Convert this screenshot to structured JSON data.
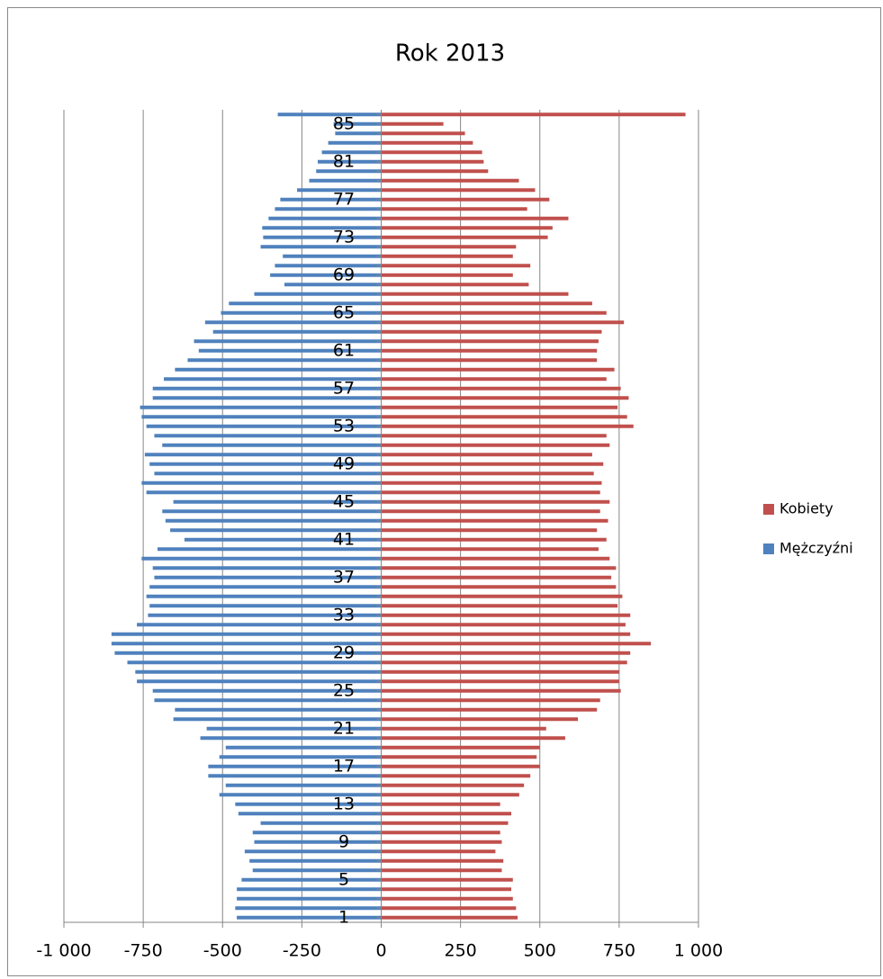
{
  "chart_data": {
    "type": "bar",
    "orientation": "horizontal",
    "title": "Rok 2013",
    "categories": [
      "1",
      null,
      null,
      null,
      "5",
      null,
      null,
      null,
      "9",
      null,
      null,
      null,
      "13",
      null,
      null,
      null,
      "17",
      null,
      null,
      null,
      "21",
      null,
      null,
      null,
      "25",
      null,
      null,
      null,
      "29",
      null,
      null,
      null,
      "33",
      null,
      null,
      null,
      "37",
      null,
      null,
      null,
      "41",
      null,
      null,
      null,
      "45",
      null,
      null,
      null,
      "49",
      null,
      null,
      null,
      "53",
      null,
      null,
      null,
      "57",
      null,
      null,
      null,
      "61",
      null,
      null,
      null,
      "65",
      null,
      null,
      null,
      "69",
      null,
      null,
      null,
      "73",
      null,
      null,
      null,
      "77",
      null,
      null,
      null,
      "81",
      null,
      null,
      null,
      "85",
      null
    ],
    "series": [
      {
        "name": "Kobiety",
        "color": "#c0504d",
        "values": [
          430,
          425,
          415,
          410,
          415,
          380,
          385,
          360,
          380,
          375,
          400,
          410,
          375,
          435,
          450,
          470,
          500,
          490,
          500,
          580,
          520,
          620,
          680,
          690,
          755,
          750,
          750,
          775,
          785,
          850,
          785,
          770,
          785,
          745,
          760,
          740,
          725,
          740,
          720,
          685,
          710,
          680,
          715,
          690,
          720,
          690,
          695,
          670,
          700,
          665,
          720,
          710,
          795,
          775,
          745,
          780,
          755,
          710,
          735,
          680,
          680,
          685,
          695,
          765,
          710,
          665,
          590,
          465,
          415,
          470,
          415,
          425,
          525,
          540,
          590,
          460,
          530,
          485,
          434,
          337,
          323,
          318,
          289,
          264,
          196,
          959
        ]
      },
      {
        "name": "Mężczyźni",
        "color": "#4f81bd",
        "values": [
          -455,
          -460,
          -455,
          -455,
          -440,
          -405,
          -415,
          -430,
          -400,
          -405,
          -380,
          -450,
          -460,
          -510,
          -490,
          -545,
          -545,
          -510,
          -490,
          -570,
          -550,
          -655,
          -650,
          -715,
          -720,
          -770,
          -775,
          -800,
          -840,
          -850,
          -850,
          -770,
          -735,
          -730,
          -740,
          -730,
          -715,
          -720,
          -755,
          -705,
          -620,
          -665,
          -680,
          -690,
          -655,
          -740,
          -755,
          -715,
          -730,
          -745,
          -690,
          -715,
          -740,
          -755,
          -760,
          -720,
          -720,
          -685,
          -650,
          -610,
          -575,
          -590,
          -530,
          -555,
          -505,
          -480,
          -400,
          -305,
          -350,
          -335,
          -310,
          -380,
          -372,
          -375,
          -355,
          -335,
          -318,
          -265,
          -227,
          -205,
          -200,
          -187,
          -167,
          -145,
          -150,
          -326
        ]
      }
    ],
    "xlim": [
      -1000,
      1000
    ],
    "xticks": [
      {
        "value": -1000,
        "label": "-1 000"
      },
      -750,
      -500,
      -250,
      0,
      250,
      500,
      750,
      {
        "value": 1000,
        "label": "1 000"
      }
    ],
    "grid": true,
    "legend": "right"
  }
}
